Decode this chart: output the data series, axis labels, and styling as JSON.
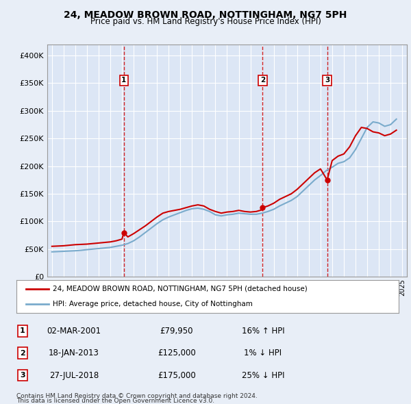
{
  "title": "24, MEADOW BROWN ROAD, NOTTINGHAM, NG7 5PH",
  "subtitle": "Price paid vs. HM Land Registry's House Price Index (HPI)",
  "background_color": "#e8eef7",
  "plot_bg_color": "#dce6f5",
  "ylabel_ticks": [
    "£0",
    "£50K",
    "£100K",
    "£150K",
    "£200K",
    "£250K",
    "£300K",
    "£350K",
    "£400K"
  ],
  "ytick_vals": [
    0,
    50000,
    100000,
    150000,
    200000,
    250000,
    300000,
    350000,
    400000
  ],
  "ylim": [
    0,
    420000
  ],
  "xlim_start": 1994.6,
  "xlim_end": 2025.4,
  "sale_dates": [
    2001.16,
    2013.05,
    2018.57
  ],
  "sale_prices": [
    79950,
    125000,
    175000
  ],
  "sale_labels": [
    "1",
    "2",
    "3"
  ],
  "legend_line1": "24, MEADOW BROWN ROAD, NOTTINGHAM, NG7 5PH (detached house)",
  "legend_line2": "HPI: Average price, detached house, City of Nottingham",
  "table_data": [
    [
      "1",
      "02-MAR-2001",
      "£79,950",
      "16% ↑ HPI"
    ],
    [
      "2",
      "18-JAN-2013",
      "£125,000",
      "1% ↓ HPI"
    ],
    [
      "3",
      "27-JUL-2018",
      "£175,000",
      "25% ↓ HPI"
    ]
  ],
  "footnote1": "Contains HM Land Registry data © Crown copyright and database right 2024.",
  "footnote2": "This data is licensed under the Open Government Licence v3.0.",
  "line_color_sold": "#cc0000",
  "line_color_hpi": "#7aabcc",
  "hpi_years": [
    1995,
    1995.5,
    1996,
    1996.5,
    1997,
    1997.5,
    1998,
    1998.5,
    1999,
    1999.5,
    2000,
    2000.5,
    2001,
    2001.5,
    2002,
    2002.5,
    2003,
    2003.5,
    2004,
    2004.5,
    2005,
    2005.5,
    2006,
    2006.5,
    2007,
    2007.5,
    2008,
    2008.5,
    2009,
    2009.5,
    2010,
    2010.5,
    2011,
    2011.5,
    2012,
    2012.5,
    2013,
    2013.5,
    2014,
    2014.5,
    2015,
    2015.5,
    2016,
    2016.5,
    2017,
    2017.5,
    2018,
    2018.5,
    2019,
    2019.5,
    2020,
    2020.5,
    2021,
    2021.5,
    2022,
    2022.5,
    2023,
    2023.5,
    2024,
    2024.5
  ],
  "hpi_values": [
    45000,
    45500,
    46000,
    46500,
    47000,
    47800,
    49000,
    50000,
    51000,
    52000,
    53000,
    55000,
    57000,
    60000,
    65000,
    72000,
    80000,
    88000,
    96000,
    103000,
    108000,
    112000,
    116000,
    120000,
    123000,
    124000,
    122000,
    118000,
    112000,
    110000,
    112000,
    113000,
    115000,
    114000,
    113000,
    113000,
    115000,
    118000,
    122000,
    128000,
    133000,
    138000,
    145000,
    155000,
    165000,
    175000,
    183000,
    192000,
    198000,
    205000,
    208000,
    215000,
    230000,
    250000,
    270000,
    280000,
    278000,
    272000,
    275000,
    285000
  ],
  "sold_years": [
    1995,
    1995.5,
    1996,
    1996.5,
    1997,
    1997.5,
    1998,
    1998.5,
    1999,
    1999.5,
    2000,
    2000.5,
    2001,
    2001.16,
    2001.5,
    2002,
    2002.5,
    2003,
    2003.5,
    2004,
    2004.5,
    2005,
    2005.5,
    2006,
    2006.5,
    2007,
    2007.5,
    2008,
    2008.5,
    2009,
    2009.5,
    2010,
    2010.5,
    2011,
    2011.5,
    2012,
    2012.5,
    2013,
    2013.05,
    2013.5,
    2014,
    2014.5,
    2015,
    2015.5,
    2016,
    2016.5,
    2017,
    2017.5,
    2018,
    2018.57,
    2019,
    2019.5,
    2020,
    2020.5,
    2021,
    2021.5,
    2022,
    2022.5,
    2023,
    2023.5,
    2024,
    2024.5
  ],
  "sold_values": [
    55000,
    55500,
    56000,
    57000,
    58000,
    58500,
    59000,
    60000,
    61000,
    62000,
    63000,
    65000,
    68000,
    79950,
    72000,
    78000,
    85000,
    92000,
    100000,
    108000,
    115000,
    118000,
    120000,
    122000,
    125000,
    128000,
    130000,
    128000,
    122000,
    118000,
    115000,
    117000,
    118000,
    120000,
    118000,
    117000,
    118000,
    121000,
    125000,
    128000,
    133000,
    140000,
    145000,
    150000,
    158000,
    168000,
    178000,
    188000,
    195000,
    175000,
    210000,
    218000,
    222000,
    235000,
    255000,
    270000,
    268000,
    262000,
    260000,
    255000,
    258000,
    265000
  ]
}
